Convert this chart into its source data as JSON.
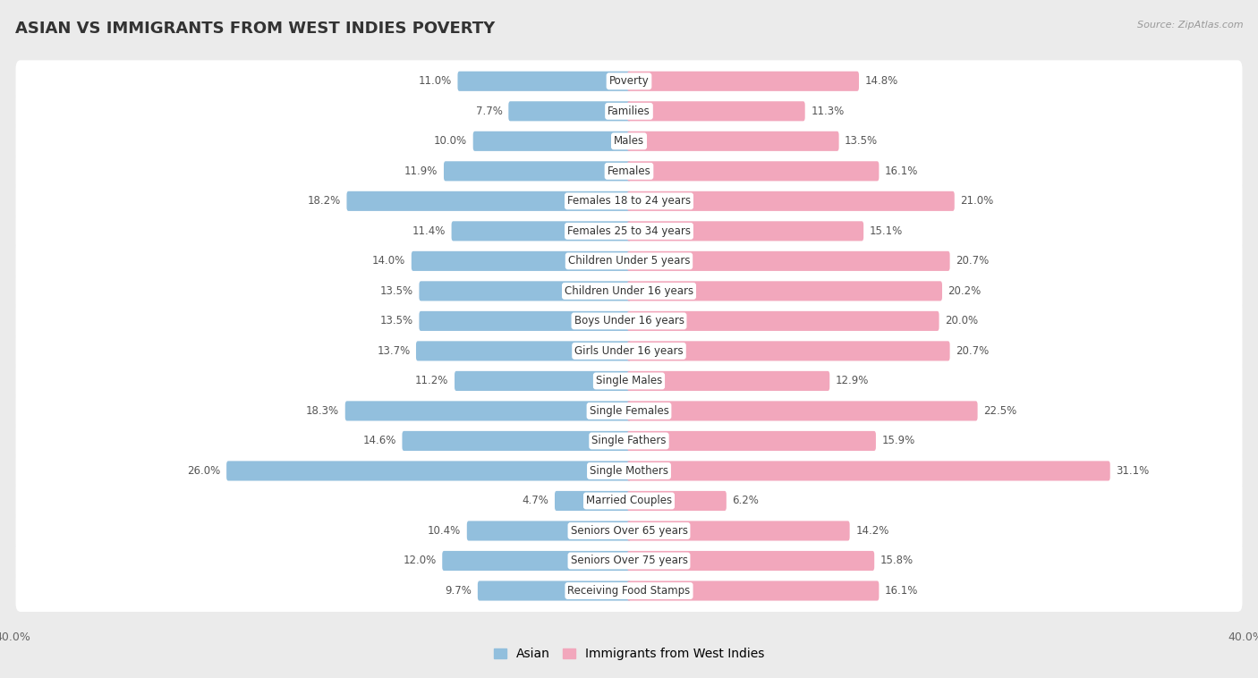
{
  "title": "ASIAN VS IMMIGRANTS FROM WEST INDIES POVERTY",
  "source": "Source: ZipAtlas.com",
  "categories": [
    "Poverty",
    "Families",
    "Males",
    "Females",
    "Females 18 to 24 years",
    "Females 25 to 34 years",
    "Children Under 5 years",
    "Children Under 16 years",
    "Boys Under 16 years",
    "Girls Under 16 years",
    "Single Males",
    "Single Females",
    "Single Fathers",
    "Single Mothers",
    "Married Couples",
    "Seniors Over 65 years",
    "Seniors Over 75 years",
    "Receiving Food Stamps"
  ],
  "asian_values": [
    11.0,
    7.7,
    10.0,
    11.9,
    18.2,
    11.4,
    14.0,
    13.5,
    13.5,
    13.7,
    11.2,
    18.3,
    14.6,
    26.0,
    4.7,
    10.4,
    12.0,
    9.7
  ],
  "west_indies_values": [
    14.8,
    11.3,
    13.5,
    16.1,
    21.0,
    15.1,
    20.7,
    20.2,
    20.0,
    20.7,
    12.9,
    22.5,
    15.9,
    31.1,
    6.2,
    14.2,
    15.8,
    16.1
  ],
  "asian_color": "#92bfdd",
  "west_indies_color": "#f2a7bc",
  "asian_label": "Asian",
  "west_indies_label": "Immigrants from West Indies",
  "xlim": 40.0,
  "background_color": "#ebebeb",
  "row_color": "#ffffff",
  "title_fontsize": 13,
  "label_fontsize": 8.5,
  "value_fontsize": 8.5,
  "legend_fontsize": 10
}
